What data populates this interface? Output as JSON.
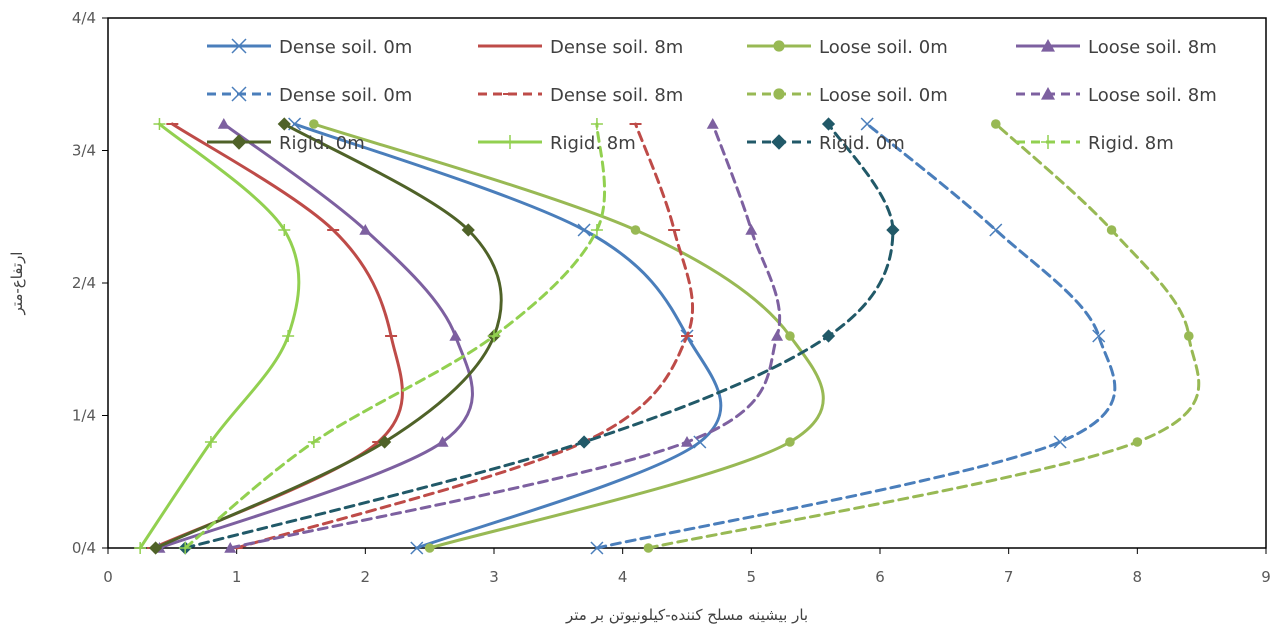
{
  "chart_data": {
    "type": "line",
    "title": "",
    "xlabel": "بار بیشینه مسلح کننده-کیلونیوتن بر متر",
    "ylabel": "ارتفاع-متر",
    "xlim": [
      0,
      9
    ],
    "ylim": [
      0,
      4
    ],
    "x_ticks": [
      "0",
      "1",
      "2",
      "3",
      "4",
      "5",
      "6",
      "7",
      "8",
      "9"
    ],
    "y_ticks": [
      "0/4",
      "1/4",
      "2/4",
      "3/4",
      "4/4"
    ],
    "grid": false,
    "legend_position": "top",
    "y_points": [
      0,
      0.8,
      1.6,
      2.4,
      3.2
    ],
    "series": [
      {
        "name": "Dense soil. 0m",
        "color": "#4a7ebb",
        "dash": "solid",
        "marker": "x",
        "x": [
          2.4,
          4.6,
          4.5,
          3.7,
          1.45
        ]
      },
      {
        "name": "Dense soil. 8m",
        "color": "#be4b48",
        "dash": "solid",
        "marker": "dash",
        "x": [
          0.35,
          2.1,
          2.2,
          1.75,
          0.5
        ]
      },
      {
        "name": "Loose soil. 0m",
        "color": "#98b954",
        "dash": "solid",
        "marker": "circle",
        "x": [
          2.5,
          5.3,
          5.3,
          4.1,
          1.6
        ]
      },
      {
        "name": "Loose soil. 8m",
        "color": "#7d60a0",
        "dash": "solid",
        "marker": "triangle",
        "x": [
          0.4,
          2.6,
          2.7,
          2.0,
          0.9
        ]
      },
      {
        "name": "Dense soil. 0m",
        "color": "#4a7ebb",
        "dash": "dashed",
        "marker": "x",
        "x": [
          3.8,
          7.4,
          7.7,
          6.9,
          5.9
        ]
      },
      {
        "name": "Dense soil. 8m",
        "color": "#be4b48",
        "dash": "dashed",
        "marker": "dash",
        "x": [
          1.0,
          3.7,
          4.5,
          4.4,
          4.1
        ]
      },
      {
        "name": "Loose soil. 0m",
        "color": "#98b954",
        "dash": "dashed",
        "marker": "circle",
        "x": [
          4.2,
          8.0,
          8.4,
          7.8,
          6.9
        ]
      },
      {
        "name": "Loose soil. 8m",
        "color": "#7d60a0",
        "dash": "dashed",
        "marker": "triangle",
        "x": [
          0.95,
          4.5,
          5.2,
          5.0,
          4.7
        ]
      },
      {
        "name": "Rigid. 0m",
        "color": "#4f6228",
        "dash": "solid",
        "marker": "diamond",
        "x": [
          0.37,
          2.15,
          3.0,
          2.8,
          1.37
        ]
      },
      {
        "name": "Rigid. 8m",
        "color": "#92d050",
        "dash": "solid",
        "marker": "plus",
        "x": [
          0.25,
          0.8,
          1.4,
          1.37,
          0.4
        ]
      },
      {
        "name": "Rigid. 0m",
        "color": "#215968",
        "dash": "dashed",
        "marker": "diamond",
        "x": [
          0.6,
          3.7,
          5.6,
          6.1,
          5.6
        ]
      },
      {
        "name": "Rigid. 8m",
        "color": "#92d050",
        "dash": "dashed",
        "marker": "plus",
        "x": [
          0.6,
          1.6,
          3.0,
          3.8,
          3.8
        ]
      }
    ]
  }
}
